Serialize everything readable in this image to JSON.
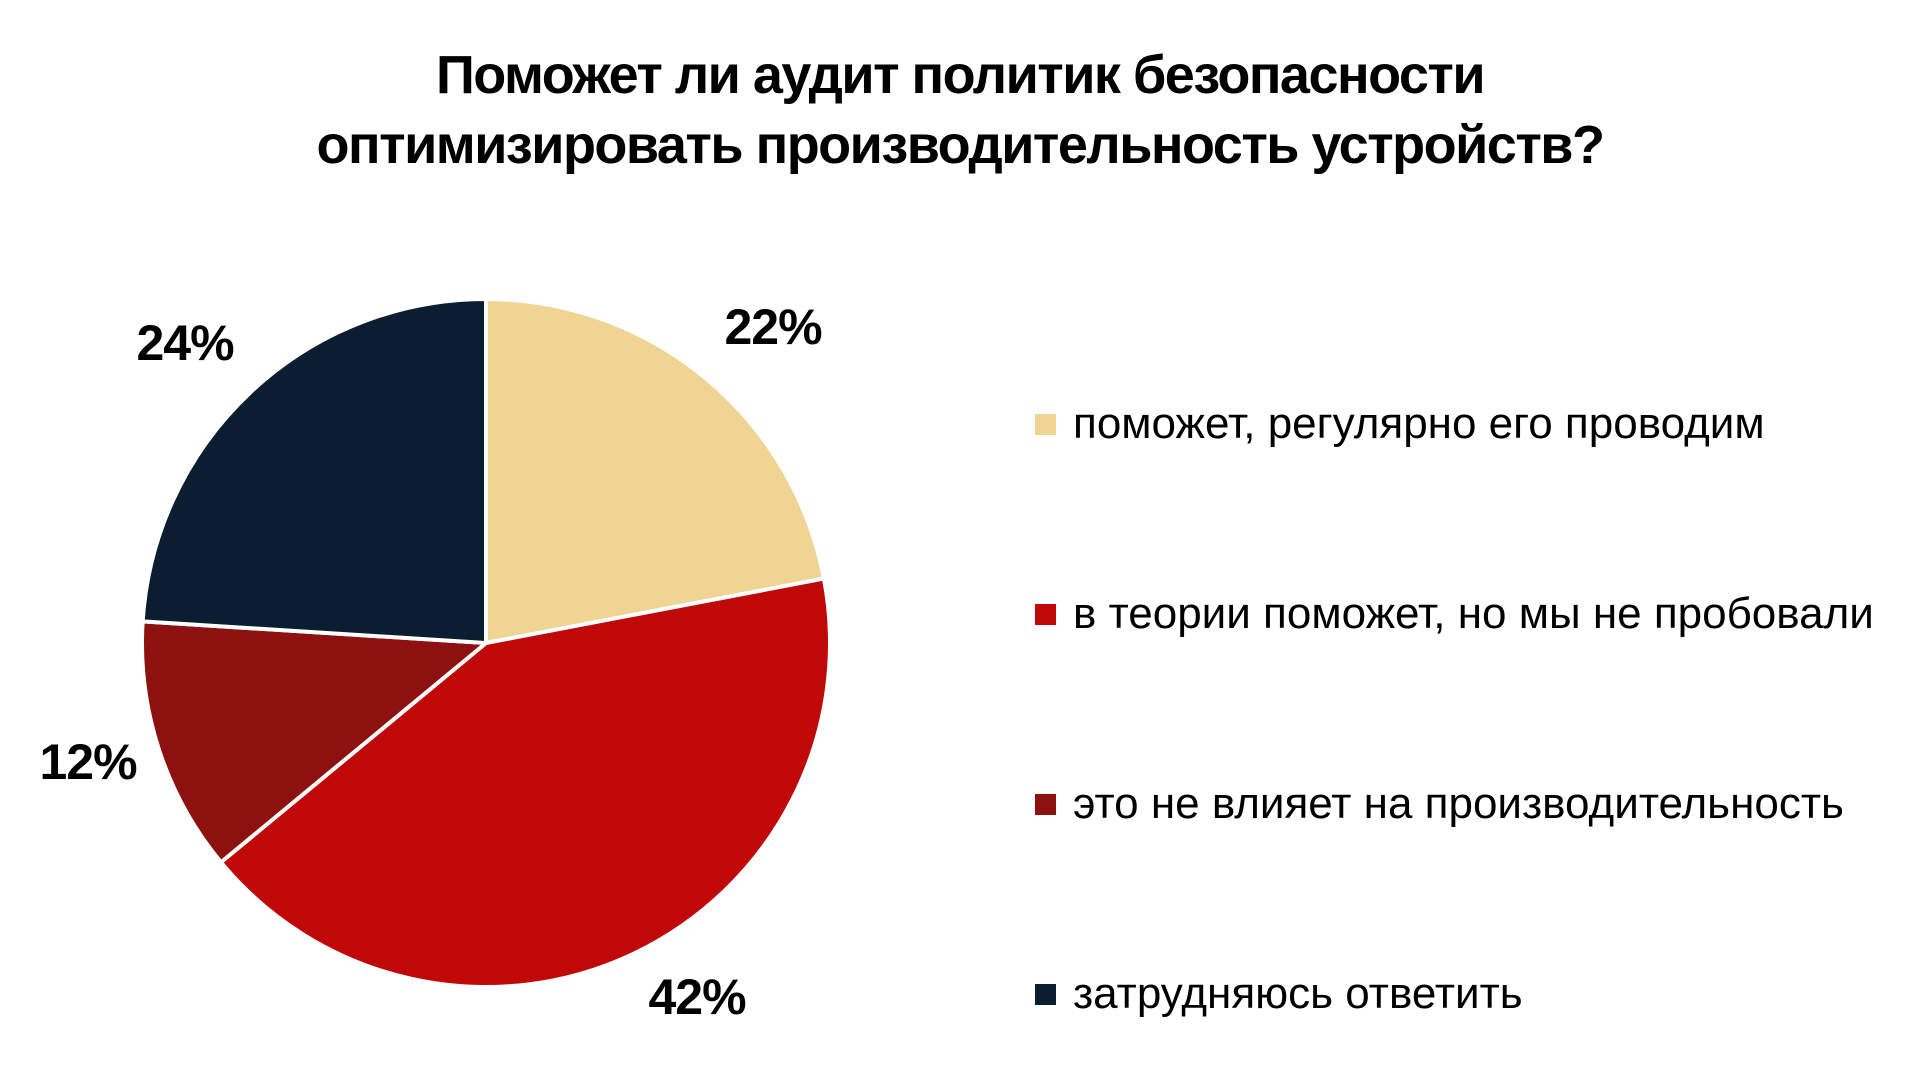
{
  "title": {
    "line1": "Поможет ли аудит политик безопасности",
    "line2": "оптимизировать производительность устройств?"
  },
  "chart_data": {
    "type": "pie",
    "title": "Поможет ли аудит политик безопасности оптимизировать производительность устройств?",
    "unit": "percent",
    "start_angle_deg": 0,
    "direction": "clockwise",
    "legend_position": "right",
    "background_color": "#ffffff",
    "slices": [
      {
        "label": "поможет, регулярно его проводим",
        "value": 22,
        "pct_label": "22%",
        "color": "#EFD494"
      },
      {
        "label": "в теории поможет, но мы не пробовали",
        "value": 42,
        "pct_label": "42%",
        "color": "#C10808"
      },
      {
        "label": "это не влияет на производительность",
        "value": 12,
        "pct_label": "12%",
        "color": "#8D120F"
      },
      {
        "label": "затрудняюсь ответить",
        "value": 24,
        "pct_label": "24%",
        "color": "#0B1D30"
      }
    ]
  }
}
